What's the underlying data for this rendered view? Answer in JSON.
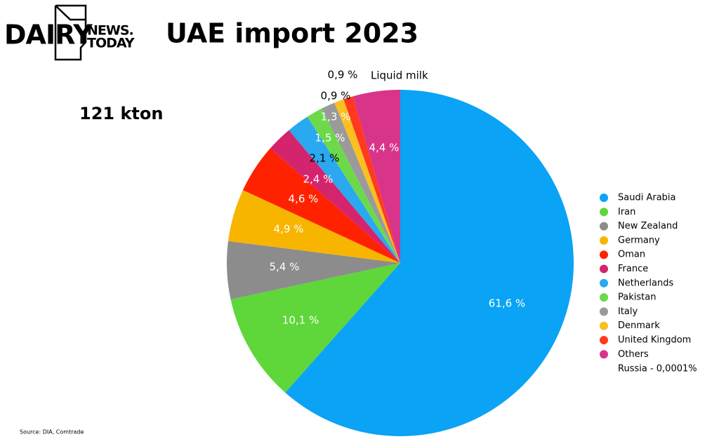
{
  "chart_data": {
    "type": "pie",
    "title": "UAE import 2023",
    "subtitle": "121 kton",
    "annotations": [
      "Liquid milk",
      "Russia - 0,0001%"
    ],
    "source": "Source: DIA, Comtrade",
    "categories": [
      "Saudi Arabia",
      "Iran",
      "New Zealand",
      "Germany",
      "Oman",
      "France",
      "Netherlands",
      "Pakistan",
      "Italy",
      "Denmark",
      "United Kingdom",
      "Others"
    ],
    "values": [
      61.6,
      10.1,
      5.4,
      4.9,
      4.6,
      2.4,
      2.1,
      1.5,
      1.3,
      0.9,
      0.9,
      4.4
    ],
    "value_labels": [
      "61,6 %",
      "10,1 %",
      "5,4 %",
      "4,9 %",
      "4,6 %",
      "2,4 %",
      "2,1 %",
      "1,5 %",
      "1,3 %",
      "0,9 %",
      "0,9 %",
      "4,4 %"
    ],
    "colors": [
      "#0aa3f5",
      "#5fd63a",
      "#8c8c8c",
      "#f7b500",
      "#ff2200",
      "#d4246e",
      "#2aa8f0",
      "#6cd94a",
      "#9a9a9a",
      "#f8c020",
      "#ff3a1e",
      "#d8348a"
    ]
  },
  "logo": {
    "main": "DAIRY",
    "top": "NEWS.",
    "bottom": "TODAY"
  }
}
